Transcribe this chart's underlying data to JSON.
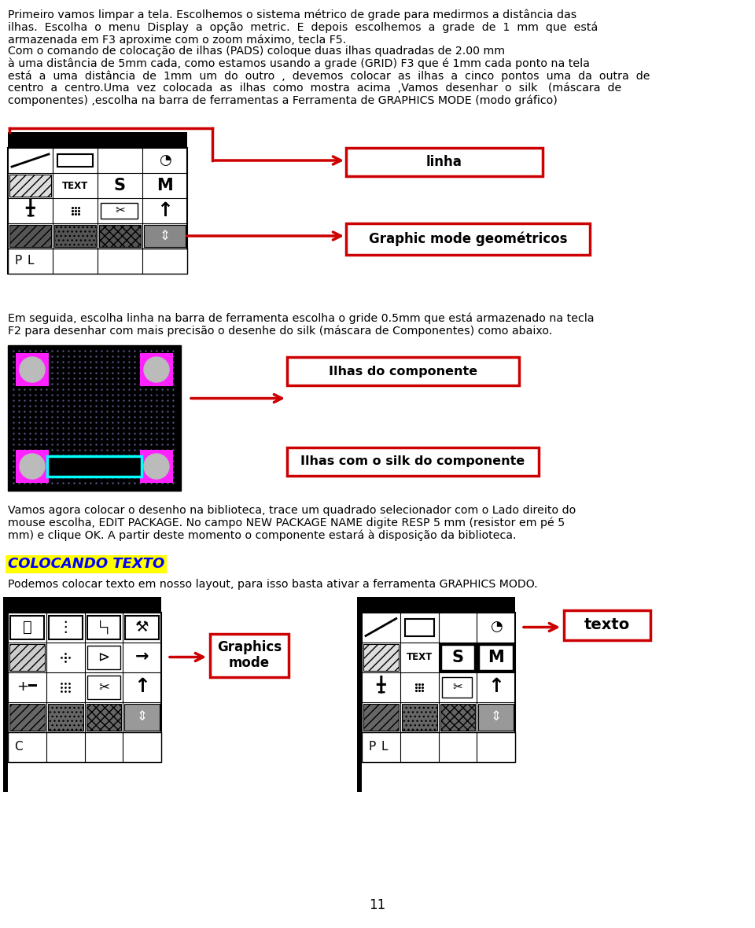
{
  "bg_color": "#ffffff",
  "page_number": "11",
  "red": "#cc0000",
  "yellow": "#ffff00",
  "label_linha": "linha",
  "label_graphic_mode": "Graphic mode geométricos",
  "label_ilhas": "Ilhas do componente",
  "label_ilhas_silk": "Ilhas com o silk do componente",
  "label_graphics_mode": "Graphics\nmode",
  "label_texto": "texto",
  "colocando_texto": "COLOCANDO TEXTO",
  "lines1": [
    "Primeiro vamos limpar a tela. Escolhemos o sistema métrico de grade para medirmos a distância das",
    "ilhas.  Escolha  o  menu  Display  a  opção  metric.  E  depois  escolhemos  a  grade  de  1  mm  que  está",
    "armazenada em F3 aproxime com o zoom máximo, tecla F5.",
    "Com o comando de colocação de ilhas (PADS) coloque duas ilhas quadradas de 2.00 mm",
    "à uma distância de 5mm cada, como estamos usando a grade (GRID) F3 que é 1mm cada ponto na tela",
    "está  a  uma  distância  de  1mm  um  do  outro  ,  devemos  colocar  as  ilhas  a  cinco  pontos  uma  da  outra  de",
    "centro  a  centro.Uma  vez  colocada  as  ilhas  como  mostra  acima  ,Vamos  desenhar  o  silk   (máscara  de",
    "componentes) ,escolha na barra de ferramentas a Ferramenta de GRAPHICS MODE (modo gráfico)"
  ],
  "lines2": [
    "Em seguida, escolha linha na barra de ferramenta escolha o gride 0.5mm que está armazenado na tecla",
    "F2 para desenhar com mais precisão o desenhe do silk (máscara de Componentes) como abaixo."
  ],
  "lines3": [
    "Vamos agora colocar o desenho na biblioteca, trace um quadrado selecionador com o Lado direito do",
    "mouse escolha, EDIT PACKAGE. No campo NEW PACKAGE NAME digite RESP 5 mm (resistor em pé 5",
    "mm) e clique OK. A partir deste momento o componente estará à disposição da biblioteca."
  ],
  "line4": "Podemos colocar texto em nosso layout, para isso basta ativar a ferramenta GRAPHICS MODO."
}
